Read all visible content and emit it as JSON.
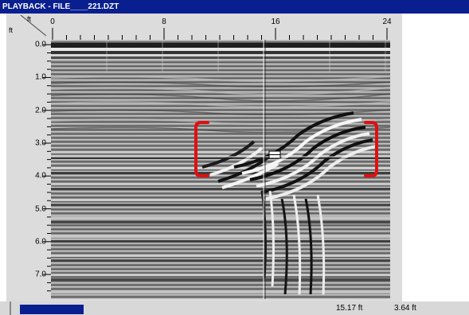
{
  "window": {
    "title": "PLAYBACK - FILE____221.DZT"
  },
  "axes": {
    "horizontal_unit": "ft",
    "vertical_unit": "ft",
    "top_ticks": [
      {
        "label": "0",
        "value": 0
      },
      {
        "label": "8",
        "value": 8
      },
      {
        "label": "16",
        "value": 16
      },
      {
        "label": "24",
        "value": 24
      }
    ],
    "top_range": [
      0,
      24
    ],
    "left_ticks": [
      {
        "label": "0.0",
        "value": 0.0
      },
      {
        "label": "1.0",
        "value": 1.0
      },
      {
        "label": "2.0",
        "value": 2.0
      },
      {
        "label": "3.0",
        "value": 3.0
      },
      {
        "label": "4.0",
        "value": 4.0
      },
      {
        "label": "5.0",
        "value": 5.0
      },
      {
        "label": "6.0",
        "value": 6.0
      },
      {
        "label": "7.0",
        "value": 7.0
      }
    ],
    "left_range": [
      -0.15,
      7.75
    ]
  },
  "cursor": {
    "distance_ft": 15.17,
    "depth_ft": 3.64
  },
  "status": {
    "distance": "15.17 ft",
    "depth": "3.64 ft"
  },
  "colors": {
    "titlebar": "#0a1f8f",
    "bracket": "#e01010",
    "progress": "#0a1f8f"
  },
  "icons": {
    "crosshair": "crosshair-icon",
    "target_marker": "target-marker-icon"
  }
}
